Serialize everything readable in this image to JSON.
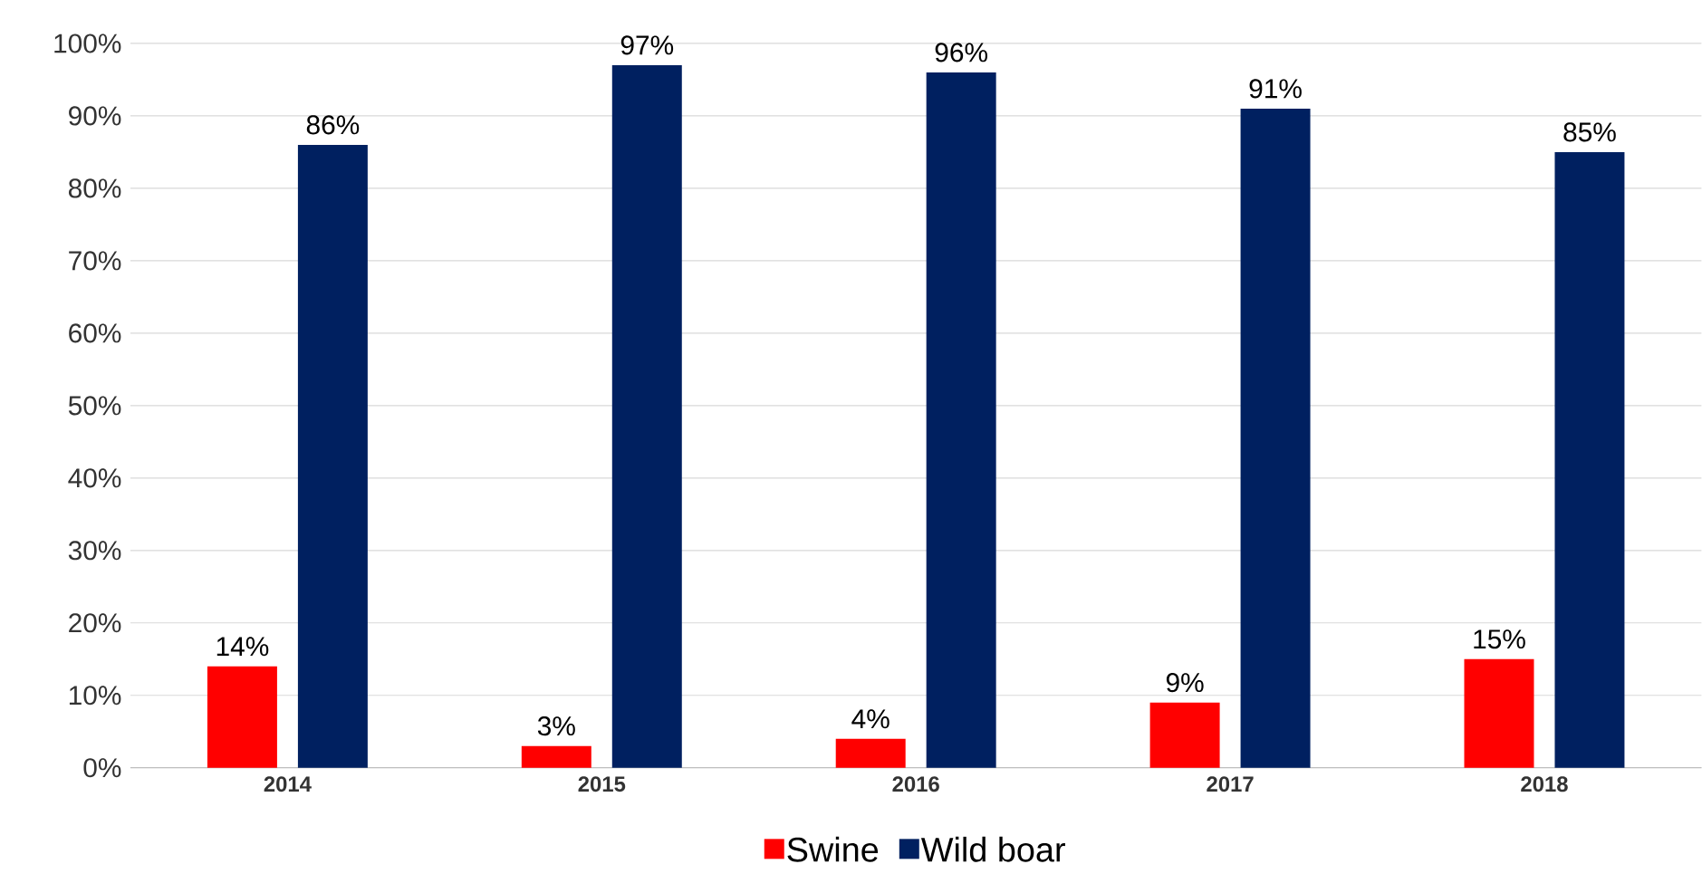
{
  "chart_data": {
    "type": "bar",
    "categories": [
      "2014",
      "2015",
      "2016",
      "2017",
      "2018"
    ],
    "series": [
      {
        "name": "Swine",
        "color": "#ff0000",
        "values": [
          14,
          3,
          4,
          9,
          15
        ],
        "value_labels": [
          "14%",
          "3%",
          "4%",
          "9%",
          "15%"
        ]
      },
      {
        "name": "Wild boar",
        "color": "#002060",
        "values": [
          86,
          97,
          96,
          91,
          85
        ],
        "value_labels": [
          "86%",
          "97%",
          "96%",
          "91%",
          "85%"
        ]
      }
    ],
    "ylim": [
      0,
      100
    ],
    "yticks": [
      {
        "value": 0,
        "label": "0%"
      },
      {
        "value": 10,
        "label": "10%"
      },
      {
        "value": 20,
        "label": "20%"
      },
      {
        "value": 30,
        "label": "30%"
      },
      {
        "value": 40,
        "label": "40%"
      },
      {
        "value": 50,
        "label": "50%"
      },
      {
        "value": 60,
        "label": "60%"
      },
      {
        "value": 70,
        "label": "70%"
      },
      {
        "value": 80,
        "label": "80%"
      },
      {
        "value": 90,
        "label": "90%"
      },
      {
        "value": 100,
        "label": "100%"
      }
    ],
    "grid": "y",
    "legend": "bottom"
  }
}
